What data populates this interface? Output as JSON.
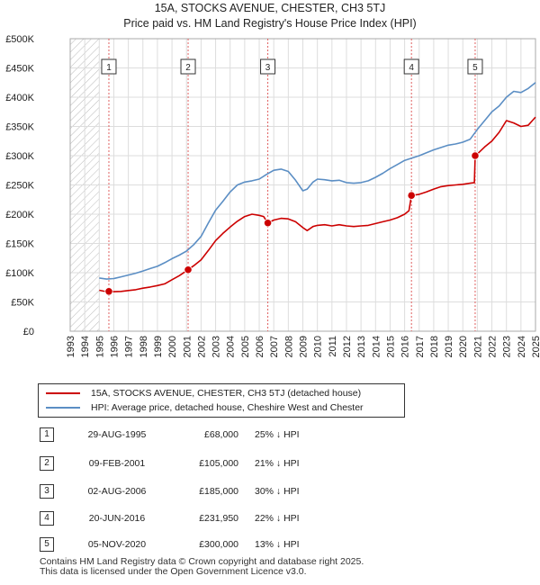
{
  "header": {
    "title": "15A, STOCKS AVENUE, CHESTER, CH3 5TJ",
    "subtitle": "Price paid vs. HM Land Registry's House Price Index (HPI)"
  },
  "chart_data": {
    "type": "line",
    "title": "15A, STOCKS AVENUE, CHESTER, CH3 5TJ",
    "subtitle": "Price paid vs. HM Land Registry's House Price Index (HPI)",
    "xlim": [
      1993,
      2025
    ],
    "ylim": [
      0,
      500000
    ],
    "x_ticks": [
      1993,
      1994,
      1995,
      1996,
      1997,
      1998,
      1999,
      2000,
      2001,
      2002,
      2003,
      2004,
      2005,
      2006,
      2007,
      2008,
      2009,
      2010,
      2011,
      2012,
      2013,
      2014,
      2015,
      2016,
      2017,
      2018,
      2019,
      2020,
      2021,
      2022,
      2023,
      2024,
      2025
    ],
    "y_ticks": [
      {
        "value": 0,
        "label": "£0"
      },
      {
        "value": 50000,
        "label": "£50K"
      },
      {
        "value": 100000,
        "label": "£100K"
      },
      {
        "value": 150000,
        "label": "£150K"
      },
      {
        "value": 200000,
        "label": "£200K"
      },
      {
        "value": 250000,
        "label": "£250K"
      },
      {
        "value": 300000,
        "label": "£300K"
      },
      {
        "value": 350000,
        "label": "£350K"
      },
      {
        "value": 400000,
        "label": "£400K"
      },
      {
        "value": 450000,
        "label": "£450K"
      },
      {
        "value": 500000,
        "label": "£500K"
      }
    ],
    "grid": true,
    "hatched_until": 1995.0,
    "series": [
      {
        "name": "15A, STOCKS AVENUE, CHESTER, CH3 5TJ (detached house)",
        "color": "#cc0000",
        "x": [
          1995.0,
          1995.3,
          1995.66,
          1996.0,
          1996.5,
          1997.0,
          1997.5,
          1998.0,
          1998.5,
          1999.0,
          1999.5,
          2000.0,
          2000.5,
          2001.1,
          2001.5,
          2002.0,
          2002.5,
          2003.0,
          2003.5,
          2004.0,
          2004.5,
          2005.0,
          2005.5,
          2006.0,
          2006.3,
          2006.59,
          2007.0,
          2007.5,
          2008.0,
          2008.5,
          2009.0,
          2009.3,
          2009.7,
          2010.0,
          2010.5,
          2011.0,
          2011.5,
          2012.0,
          2012.5,
          2013.0,
          2013.5,
          2014.0,
          2014.5,
          2015.0,
          2015.5,
          2016.0,
          2016.3,
          2016.47,
          2017.0,
          2017.5,
          2018.0,
          2018.5,
          2019.0,
          2019.5,
          2020.0,
          2020.5,
          2020.8,
          2020.85,
          2021.0,
          2021.5,
          2022.0,
          2022.5,
          2023.0,
          2023.5,
          2024.0,
          2024.5,
          2025.0
        ],
        "values": [
          70000,
          68500,
          68000,
          67500,
          68000,
          69500,
          71000,
          73500,
          75500,
          78000,
          81000,
          88000,
          95000,
          105000,
          112000,
          122000,
          138000,
          155000,
          167000,
          178000,
          188000,
          196000,
          200000,
          198000,
          196000,
          185000,
          190000,
          193000,
          192000,
          187000,
          177000,
          172000,
          179000,
          181000,
          182000,
          180000,
          182000,
          180000,
          179000,
          180000,
          181000,
          184000,
          187000,
          190000,
          194000,
          200000,
          206000,
          231950,
          234000,
          238000,
          243000,
          247000,
          249000,
          250000,
          251000,
          253000,
          254000,
          300000,
          303000,
          315000,
          325000,
          340000,
          360000,
          356000,
          350000,
          352000,
          366000
        ]
      },
      {
        "name": "HPI: Average price, detached house, Cheshire West and Chester",
        "color": "#5b8ec4",
        "x": [
          1995.0,
          1995.5,
          1996.0,
          1996.5,
          1997.0,
          1997.5,
          1998.0,
          1998.5,
          1999.0,
          1999.5,
          2000.0,
          2000.5,
          2001.0,
          2001.5,
          2002.0,
          2002.5,
          2003.0,
          2003.5,
          2004.0,
          2004.5,
          2005.0,
          2005.5,
          2006.0,
          2006.5,
          2007.0,
          2007.5,
          2008.0,
          2008.5,
          2009.0,
          2009.3,
          2009.7,
          2010.0,
          2010.5,
          2011.0,
          2011.5,
          2012.0,
          2012.5,
          2013.0,
          2013.5,
          2014.0,
          2014.5,
          2015.0,
          2015.5,
          2016.0,
          2016.5,
          2017.0,
          2017.5,
          2018.0,
          2018.5,
          2019.0,
          2019.5,
          2020.0,
          2020.5,
          2021.0,
          2021.5,
          2022.0,
          2022.5,
          2023.0,
          2023.5,
          2024.0,
          2024.5,
          2025.0
        ],
        "values": [
          91000,
          89000,
          90000,
          93000,
          96000,
          99000,
          103000,
          107000,
          111000,
          117000,
          124000,
          130000,
          137000,
          148000,
          162000,
          185000,
          207000,
          222000,
          238000,
          250000,
          255000,
          257000,
          260000,
          268000,
          275000,
          277000,
          273000,
          258000,
          240000,
          243000,
          255000,
          260000,
          259000,
          257000,
          258000,
          254000,
          253000,
          254000,
          257000,
          263000,
          270000,
          278000,
          285000,
          292000,
          296000,
          300000,
          305000,
          310000,
          314000,
          318000,
          320000,
          323000,
          328000,
          345000,
          360000,
          375000,
          385000,
          400000,
          410000,
          408000,
          415000,
          425000
        ]
      }
    ],
    "sales": [
      {
        "id": "1",
        "year": 1995.66,
        "price": 68000
      },
      {
        "id": "2",
        "year": 2001.11,
        "price": 105000
      },
      {
        "id": "3",
        "year": 2006.59,
        "price": 185000
      },
      {
        "id": "4",
        "year": 2016.47,
        "price": 231950
      },
      {
        "id": "5",
        "year": 2020.85,
        "price": 300000
      }
    ]
  },
  "legend": {
    "property": "15A, STOCKS AVENUE, CHESTER, CH3 5TJ (detached house)",
    "hpi": "HPI: Average price, detached house, Cheshire West and Chester",
    "property_color": "#cc0000",
    "hpi_color": "#5b8ec4"
  },
  "table": [
    {
      "id": "1",
      "date": "29-AUG-1995",
      "price": "£68,000",
      "hpi": "25% ↓ HPI"
    },
    {
      "id": "2",
      "date": "09-FEB-2001",
      "price": "£105,000",
      "hpi": "21% ↓ HPI"
    },
    {
      "id": "3",
      "date": "02-AUG-2006",
      "price": "£185,000",
      "hpi": "30% ↓ HPI"
    },
    {
      "id": "4",
      "date": "20-JUN-2016",
      "price": "£231,950",
      "hpi": "22% ↓ HPI"
    },
    {
      "id": "5",
      "date": "05-NOV-2020",
      "price": "£300,000",
      "hpi": "13% ↓ HPI"
    }
  ],
  "footer": {
    "line1": "Contains HM Land Registry data © Crown copyright and database right 2025.",
    "line2": "This data is licensed under the Open Government Licence v3.0."
  }
}
